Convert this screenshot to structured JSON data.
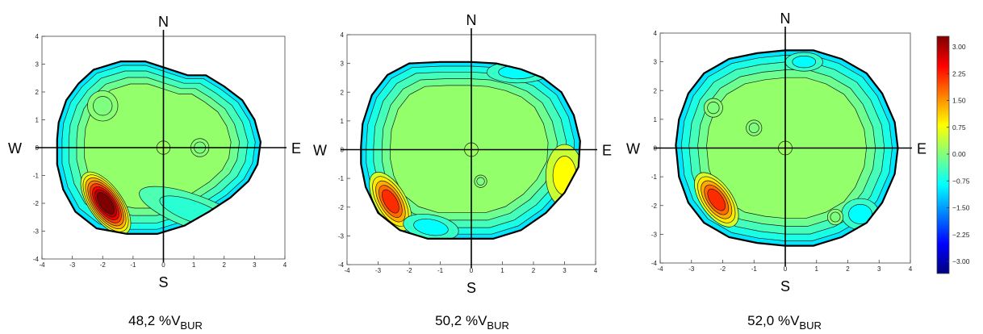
{
  "chart_data": [
    {
      "type": "heatmap",
      "panel_label": "48,2 %V",
      "panel_label_sub": "BUR",
      "xlim": [
        -4,
        4
      ],
      "ylim": [
        -4,
        4
      ],
      "x_ticks": [
        -4,
        -3,
        -2,
        -1,
        0,
        1,
        2,
        3,
        4
      ],
      "y_ticks": [
        -4,
        -3,
        -2,
        -1,
        0,
        1,
        2,
        3,
        4
      ],
      "compass": {
        "north": "N",
        "south": "S",
        "west": "W",
        "east": "E"
      },
      "grid": false,
      "outline": [
        [
          -3.5,
          0.3
        ],
        [
          -3.45,
          0.9
        ],
        [
          -3.2,
          1.7
        ],
        [
          -2.8,
          2.3
        ],
        [
          -2.3,
          2.8
        ],
        [
          -1.4,
          3.1
        ],
        [
          -0.6,
          3.1
        ],
        [
          0.1,
          2.85
        ],
        [
          0.8,
          2.6
        ],
        [
          1.4,
          2.6
        ],
        [
          2.0,
          2.2
        ],
        [
          2.6,
          1.7
        ],
        [
          3.0,
          1.0
        ],
        [
          3.2,
          0.2
        ],
        [
          3.1,
          -0.6
        ],
        [
          2.8,
          -1.2
        ],
        [
          2.2,
          -1.8
        ],
        [
          1.5,
          -2.3
        ],
        [
          0.7,
          -2.8
        ],
        [
          -0.2,
          -3.1
        ],
        [
          -1.2,
          -3.1
        ],
        [
          -2.2,
          -2.9
        ],
        [
          -2.9,
          -2.3
        ],
        [
          -3.3,
          -1.5
        ],
        [
          -3.5,
          -0.6
        ]
      ],
      "features": [
        {
          "level": 3.0,
          "cx": -1.9,
          "cy": -2.0,
          "rx": 0.55,
          "ry": 1.2,
          "rot": -35
        },
        {
          "level": -0.5,
          "cx": 1.0,
          "cy": -2.3,
          "rx": 1.9,
          "ry": 0.55,
          "rot": 20
        },
        {
          "level": 0.0,
          "cx": -2.0,
          "cy": 1.5,
          "rx": 0.5,
          "ry": 0.5,
          "rot": 0
        },
        {
          "level": 0.0,
          "cx": 1.2,
          "cy": 0.0,
          "rx": 0.3,
          "ry": 0.3,
          "rot": 0
        }
      ]
    },
    {
      "type": "heatmap",
      "panel_label": "50,2 %V",
      "panel_label_sub": "BUR",
      "xlim": [
        -4,
        4
      ],
      "ylim": [
        -4,
        4
      ],
      "x_ticks": [
        -4,
        -3,
        -2,
        -1,
        0,
        1,
        2,
        3,
        4
      ],
      "y_ticks": [
        -4,
        -3,
        -2,
        -1,
        0,
        1,
        2,
        3,
        4
      ],
      "compass": {
        "north": "N",
        "south": "S",
        "west": "W",
        "east": "E"
      },
      "grid": false,
      "outline": [
        [
          -3.55,
          0.1
        ],
        [
          -3.5,
          0.9
        ],
        [
          -3.2,
          1.9
        ],
        [
          -2.7,
          2.6
        ],
        [
          -2.0,
          3.0
        ],
        [
          -1.0,
          3.05
        ],
        [
          0.0,
          3.05
        ],
        [
          0.8,
          3.0
        ],
        [
          1.6,
          2.8
        ],
        [
          2.3,
          2.5
        ],
        [
          2.9,
          2.0
        ],
        [
          3.3,
          1.2
        ],
        [
          3.5,
          0.3
        ],
        [
          3.45,
          -0.6
        ],
        [
          3.0,
          -1.5
        ],
        [
          2.4,
          -2.2
        ],
        [
          1.6,
          -2.8
        ],
        [
          0.7,
          -3.1
        ],
        [
          -0.3,
          -3.1
        ],
        [
          -1.4,
          -3.1
        ],
        [
          -2.3,
          -2.8
        ],
        [
          -3.0,
          -2.2
        ],
        [
          -3.4,
          -1.3
        ],
        [
          -3.55,
          -0.5
        ]
      ],
      "features": [
        {
          "level": 2.0,
          "cx": -2.6,
          "cy": -1.8,
          "rx": 0.5,
          "ry": 1.05,
          "rot": -30
        },
        {
          "level": 0.75,
          "cx": 3.0,
          "cy": -0.9,
          "rx": 0.6,
          "ry": 1.0,
          "rot": 0
        },
        {
          "level": -0.75,
          "cx": -1.3,
          "cy": -2.7,
          "rx": 0.9,
          "ry": 0.4,
          "rot": 10
        },
        {
          "level": -0.75,
          "cx": 1.5,
          "cy": 2.7,
          "rx": 1.0,
          "ry": 0.35,
          "rot": 0
        },
        {
          "level": 0.0,
          "cx": 0.3,
          "cy": -1.1,
          "rx": 0.2,
          "ry": 0.2,
          "rot": 0
        }
      ]
    },
    {
      "type": "heatmap",
      "panel_label": "52,0 %V",
      "panel_label_sub": "BUR",
      "xlim": [
        -4,
        4
      ],
      "ylim": [
        -4,
        4
      ],
      "x_ticks": [
        -4,
        -3,
        -2,
        -1,
        0,
        1,
        2,
        3,
        4
      ],
      "y_ticks": [
        -4,
        -3,
        -2,
        -1,
        0,
        1,
        2,
        3,
        4
      ],
      "compass": {
        "north": "N",
        "south": "S",
        "west": "W",
        "east": "E"
      },
      "grid": false,
      "outline": [
        [
          -3.5,
          0.1
        ],
        [
          -3.4,
          1.0
        ],
        [
          -3.1,
          1.9
        ],
        [
          -2.6,
          2.6
        ],
        [
          -1.8,
          3.1
        ],
        [
          -0.9,
          3.3
        ],
        [
          0.0,
          3.4
        ],
        [
          0.9,
          3.4
        ],
        [
          1.8,
          3.1
        ],
        [
          2.6,
          2.6
        ],
        [
          3.1,
          1.9
        ],
        [
          3.5,
          0.9
        ],
        [
          3.6,
          0.0
        ],
        [
          3.5,
          -0.9
        ],
        [
          3.1,
          -1.9
        ],
        [
          2.6,
          -2.6
        ],
        [
          1.8,
          -3.1
        ],
        [
          0.9,
          -3.4
        ],
        [
          0.0,
          -3.4
        ],
        [
          -0.9,
          -3.3
        ],
        [
          -1.8,
          -3.1
        ],
        [
          -2.6,
          -2.6
        ],
        [
          -3.1,
          -1.9
        ],
        [
          -3.4,
          -1.0
        ]
      ],
      "features": [
        {
          "level": 2.0,
          "cx": -2.2,
          "cy": -1.8,
          "rx": 0.5,
          "ry": 1.0,
          "rot": -35
        },
        {
          "level": -0.75,
          "cx": 0.6,
          "cy": 3.0,
          "rx": 0.6,
          "ry": 0.3,
          "rot": 0
        },
        {
          "level": -0.75,
          "cx": 2.4,
          "cy": -2.3,
          "rx": 0.6,
          "ry": 0.5,
          "rot": 0
        },
        {
          "level": 0.0,
          "cx": 1.6,
          "cy": -2.4,
          "rx": 0.25,
          "ry": 0.25,
          "rot": 0
        },
        {
          "level": 0.0,
          "cx": -2.3,
          "cy": 1.4,
          "rx": 0.3,
          "ry": 0.3,
          "rot": 0
        },
        {
          "level": 0.0,
          "cx": -1.0,
          "cy": 0.7,
          "rx": 0.25,
          "ry": 0.25,
          "rot": 0
        }
      ]
    }
  ],
  "colorbar": {
    "ticks": [
      "3.00",
      "2.25",
      "1.50",
      "0.75",
      "0.00",
      "−0.75",
      "−1.50",
      "−2.25",
      "−3.00"
    ],
    "min": -3.0,
    "max": 3.0,
    "colormap": [
      "#00007f",
      "#0000ff",
      "#0080ff",
      "#00ffff",
      "#7fff7f",
      "#ffff00",
      "#ff8000",
      "#ff0000",
      "#7f0000"
    ]
  }
}
